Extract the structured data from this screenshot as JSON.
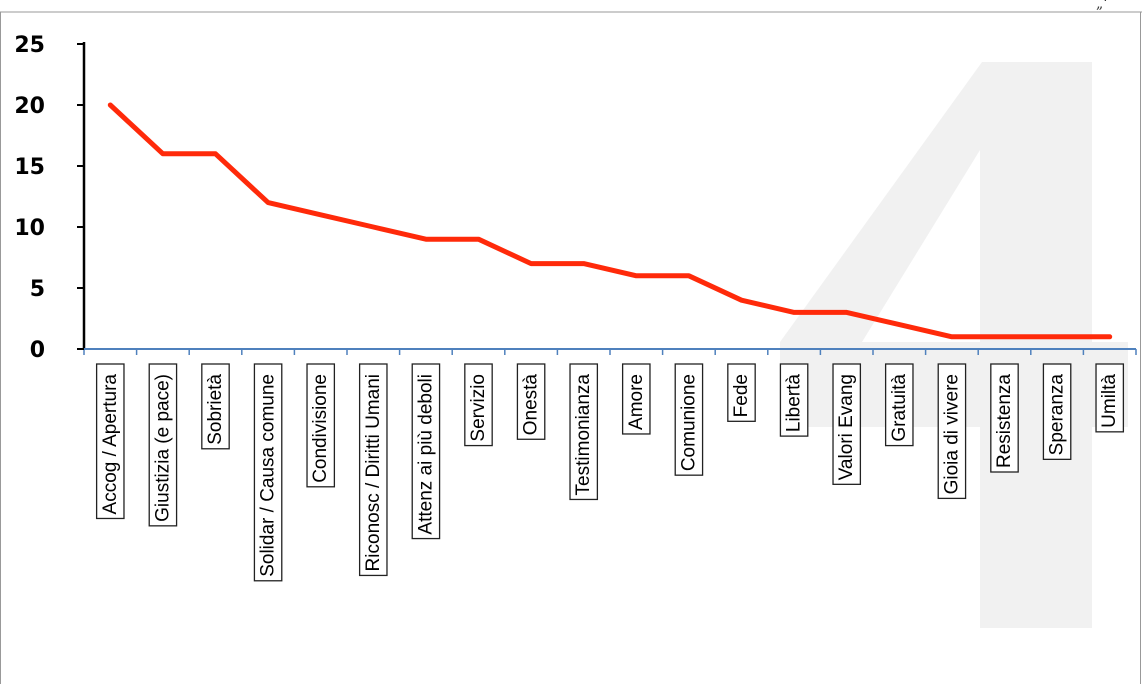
{
  "corner_mark": "„‘",
  "chart_data": {
    "type": "line",
    "title": "",
    "xlabel": "",
    "ylabel": "",
    "ylim": [
      0,
      25
    ],
    "yticks": [
      "0",
      "5",
      "10",
      "15",
      "20",
      "25"
    ],
    "categories": [
      "Accog / Apertura",
      "Giustizia (e pace)",
      "Sobrietà",
      "Solidar / Causa comune",
      "Condivisione",
      "Riconosc / Diritti Umani",
      "Attenz ai più deboli",
      "Servizio",
      "Onestà",
      "Testimonianza",
      "Amore",
      "Comunione",
      "Fede",
      "Libertà",
      "Valori Evang",
      "Gratuità",
      "Gioia di vivere",
      "Resistenza",
      "Speranza",
      "Umiltà"
    ],
    "series": [
      {
        "values": [
          20,
          16,
          16,
          12,
          11,
          10,
          9,
          9,
          7,
          7,
          6,
          6,
          4,
          3,
          3,
          2,
          1,
          1,
          1,
          1
        ]
      }
    ],
    "colors": {
      "line": "#ff2a0a",
      "axis": "#4f81bd",
      "watermark": "#e2e2e2"
    },
    "grid": false,
    "legend": "none",
    "watermark_text": "4"
  }
}
